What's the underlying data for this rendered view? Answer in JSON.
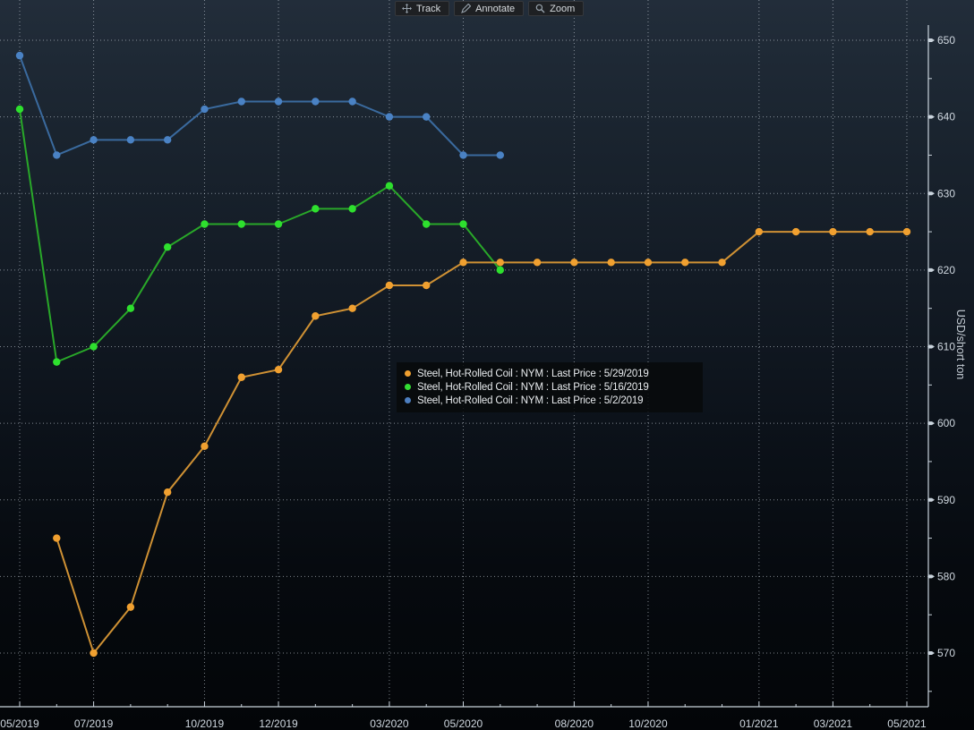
{
  "toolbar": {
    "buttons": [
      {
        "icon": "move-crosshair-icon",
        "label": "Track"
      },
      {
        "icon": "pencil-icon",
        "label": "Annotate"
      },
      {
        "icon": "magnifier-icon",
        "label": "Zoom"
      }
    ]
  },
  "legend": {
    "position": "center",
    "items": [
      {
        "color": "#f0a030",
        "label": "Steel, Hot-Rolled Coil : NYM : Last Price : 5/29/2019"
      },
      {
        "color": "#33dd33",
        "label": "Steel, Hot-Rolled Coil : NYM : Last Price : 5/16/2019"
      },
      {
        "color": "#4d7fc0",
        "label": "Steel, Hot-Rolled Coil : NYM : Last Price : 5/2/2019"
      }
    ]
  },
  "chart_data": {
    "type": "line",
    "title": "",
    "xlabel": "",
    "ylabel": "USD/short ton",
    "grid": "dotted",
    "x_axis_start_month": "05/2019",
    "x_axis_end_month": "05/2021",
    "x_total_months": 24,
    "x_tick_labels": [
      "05/2019",
      "07/2019",
      "10/2019",
      "12/2019",
      "03/2020",
      "05/2020",
      "08/2020",
      "10/2020",
      "01/2021",
      "03/2021",
      "05/2021"
    ],
    "x_tick_month_indices": [
      0,
      2,
      5,
      7,
      10,
      12,
      15,
      17,
      20,
      22,
      24
    ],
    "ylim": [
      563,
      653
    ],
    "y_major_ticks": [
      570,
      580,
      590,
      600,
      610,
      620,
      630,
      640,
      650
    ],
    "y_minor_ticks": [
      565,
      575,
      585,
      595,
      605,
      615,
      625,
      635,
      645
    ],
    "series": [
      {
        "name": "Steel, Hot-Rolled Coil : NYM : Last Price : 5/29/2019",
        "color_line": "#cf9134",
        "color_point": "#f0a030",
        "start_month_index": 1,
        "months": [
          "06/2019",
          "07/2019",
          "08/2019",
          "09/2019",
          "10/2019",
          "11/2019",
          "12/2019",
          "01/2020",
          "02/2020",
          "03/2020",
          "04/2020",
          "05/2020",
          "06/2020",
          "07/2020",
          "08/2020",
          "09/2020",
          "10/2020",
          "11/2020",
          "12/2020",
          "01/2021",
          "02/2021",
          "03/2021",
          "04/2021",
          "05/2021"
        ],
        "values": [
          585,
          570,
          576,
          591,
          597,
          606,
          607,
          614,
          615,
          618,
          618,
          621,
          621,
          621,
          621,
          621,
          621,
          621,
          621,
          625,
          625,
          625,
          625,
          625
        ]
      },
      {
        "name": "Steel, Hot-Rolled Coil : NYM : Last Price : 5/16/2019",
        "color_line": "#29a829",
        "color_point": "#2ee02e",
        "start_month_index": 0,
        "months": [
          "05/2019",
          "06/2019",
          "07/2019",
          "08/2019",
          "09/2019",
          "10/2019",
          "11/2019",
          "12/2019",
          "01/2020",
          "02/2020",
          "03/2020",
          "04/2020",
          "05/2020",
          "06/2020"
        ],
        "values": [
          641,
          608,
          610,
          615,
          623,
          626,
          626,
          626,
          628,
          628,
          631,
          626,
          626,
          620
        ]
      },
      {
        "name": "Steel, Hot-Rolled Coil : NYM : Last Price : 5/2/2019",
        "color_line": "#3a6a9e",
        "color_point": "#4a82c4",
        "start_month_index": 0,
        "months": [
          "05/2019",
          "06/2019",
          "07/2019",
          "08/2019",
          "09/2019",
          "10/2019",
          "11/2019",
          "12/2019",
          "01/2020",
          "02/2020",
          "03/2020",
          "04/2020",
          "05/2020",
          "06/2020"
        ],
        "values": [
          648,
          635,
          637,
          637,
          637,
          641,
          642,
          642,
          642,
          642,
          640,
          640,
          635,
          635
        ]
      }
    ]
  }
}
